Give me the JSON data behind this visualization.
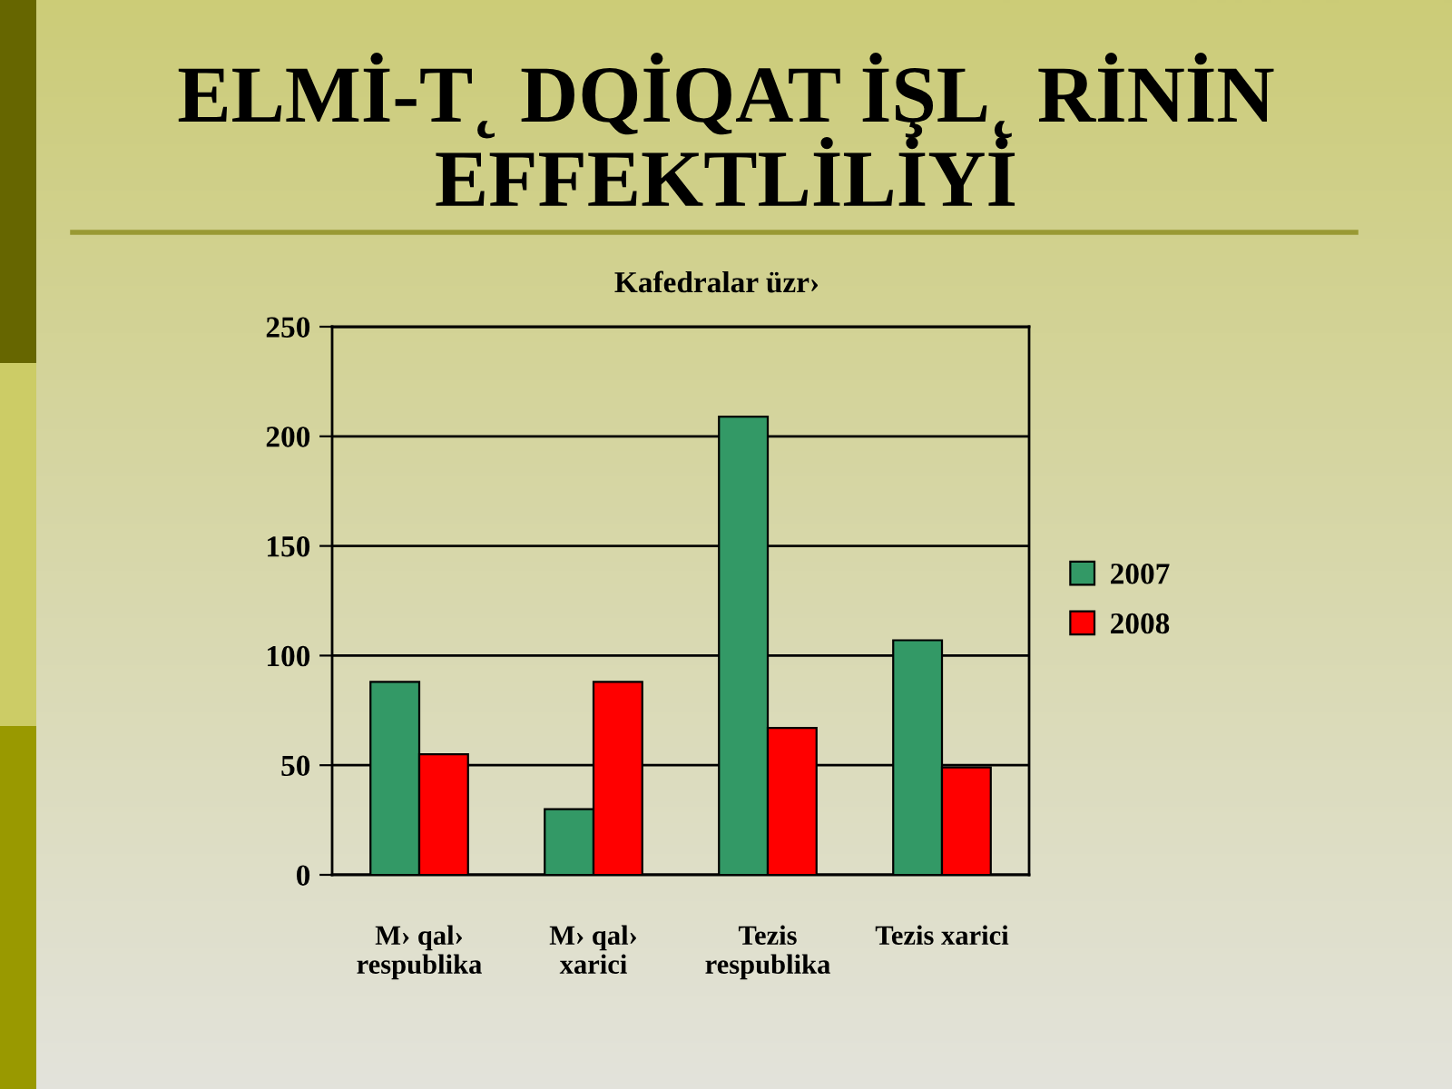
{
  "chart_data": {
    "type": "bar",
    "title": "ELMİ-T˛ DQİQAT İŞL˛ RİNİN\nEFFEKTLİLİYİ",
    "subtitle": "Kafedralar üzr›",
    "categories": [
      "M› qal›\nrespublika",
      "M› qal›\nxarici",
      "Tezis\nrespublika",
      "Tezis xarici"
    ],
    "series": [
      {
        "name": "2007",
        "color": "#339966",
        "values": [
          88,
          30,
          209,
          107
        ]
      },
      {
        "name": "2008",
        "color": "#ff0000",
        "values": [
          55,
          88,
          67,
          49
        ]
      }
    ],
    "ylim": [
      0,
      250
    ],
    "yticks": [
      0,
      50,
      100,
      150,
      200,
      250
    ],
    "grid": "y",
    "legend": "right"
  }
}
